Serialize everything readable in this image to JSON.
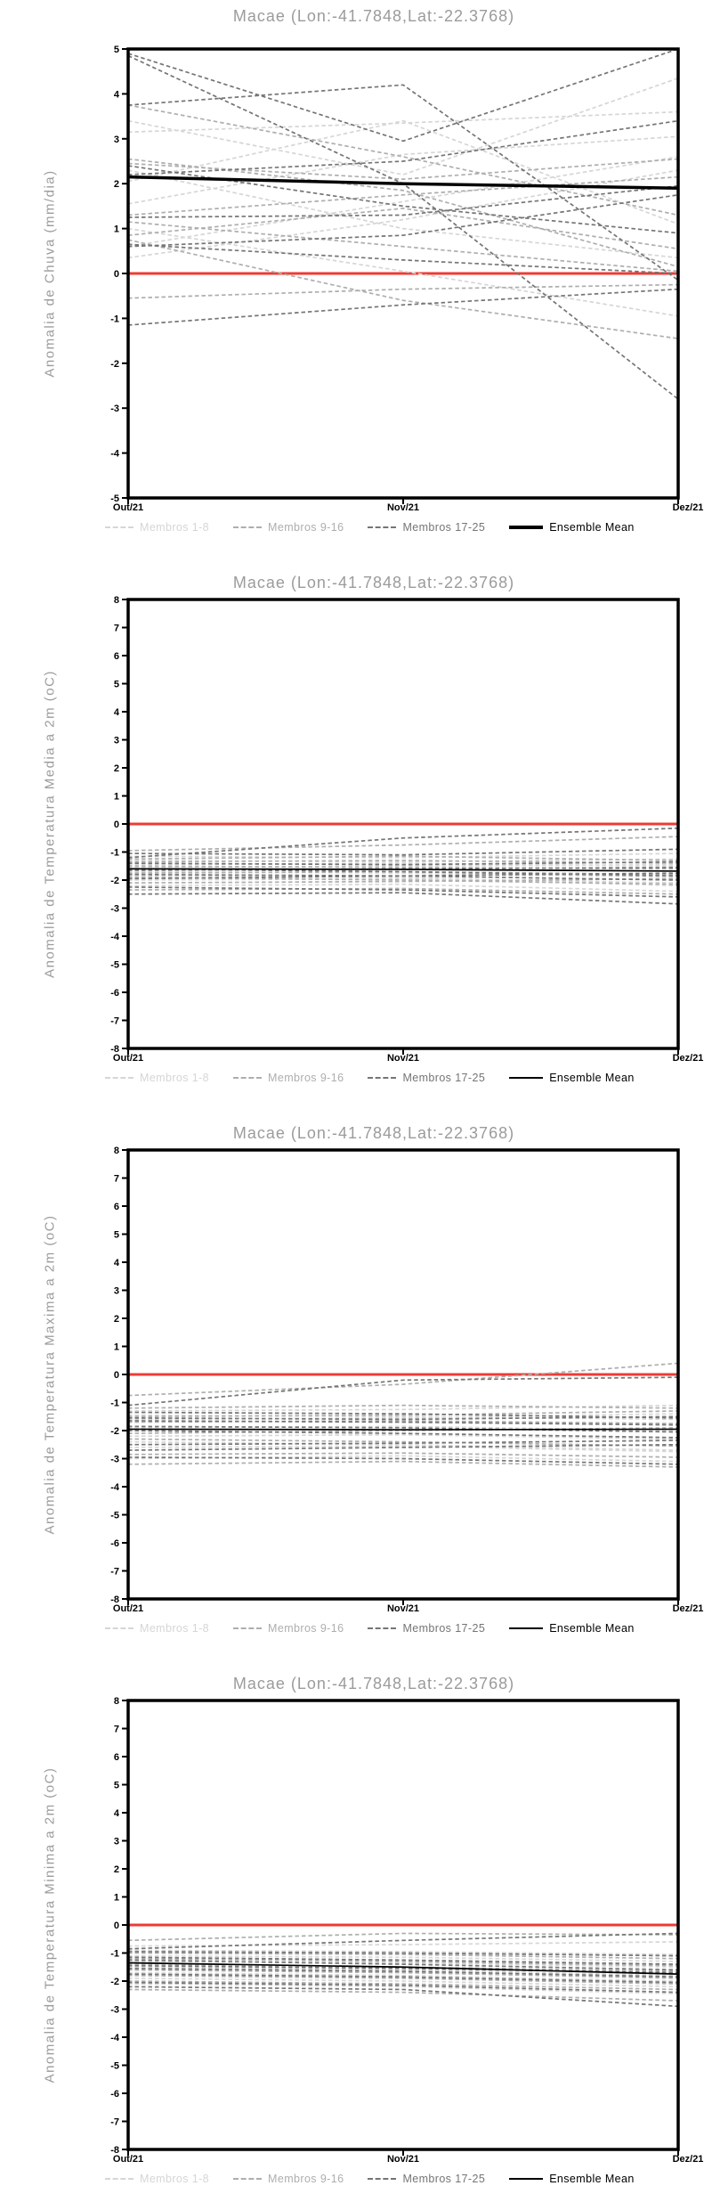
{
  "shared": {
    "x_tick_labels": [
      "Out/21",
      "Nov/21",
      "Dez/21"
    ],
    "legend": [
      {
        "label": "Membros 1-8",
        "color": "#d6d6d6",
        "style": "dashed"
      },
      {
        "label": "Membros 9-16",
        "color": "#aeaeae",
        "style": "dashed"
      },
      {
        "label": "Membros 17-25",
        "color": "#757575",
        "style": "dashed"
      },
      {
        "label": "Ensemble Mean",
        "color": "#000000",
        "style": "solid"
      }
    ],
    "zero_line_color": "#ee3b35",
    "member_colors": {
      "light": "#d6d6d6",
      "medium": "#aeaeae",
      "dark": "#757575"
    },
    "mean_color": "#000000",
    "frame_color": "#000000",
    "title_color": "#9b9b9b"
  },
  "chart_data": [
    {
      "type": "line",
      "title": "Macae (Lon:-41.7848,Lat:-22.3768)",
      "ylabel": "Anomalia de Chuva (mm/dia)",
      "ylim": [
        -5,
        5
      ],
      "ystep": 1,
      "x": [
        "Out/21",
        "Nov/21",
        "Dez/21"
      ],
      "zero_line": 0,
      "mean": [
        2.15,
        2.0,
        1.9
      ],
      "mean_width": 3.5,
      "legend_mean_width": 4,
      "members": {
        "light": [
          [
            3.4,
            2.2,
            4.35
          ],
          [
            3.15,
            3.35,
            3.6
          ],
          [
            1.55,
            2.65,
            3.05
          ],
          [
            0.35,
            1.2,
            2.3
          ],
          [
            2.3,
            1.0,
            0.35
          ],
          [
            1.0,
            0.05,
            -0.95
          ],
          [
            0.6,
            1.6,
            2.6
          ],
          [
            2.05,
            3.4,
            1.1
          ]
        ],
        "medium": [
          [
            3.75,
            2.6,
            1.3
          ],
          [
            2.55,
            1.85,
            0.15
          ],
          [
            1.3,
            1.75,
            2.15
          ],
          [
            1.15,
            0.6,
            0.05
          ],
          [
            0.85,
            1.45,
            0.55
          ],
          [
            -0.55,
            -0.35,
            -0.25
          ],
          [
            2.45,
            2.1,
            2.55
          ],
          [
            0.75,
            -0.6,
            -1.45
          ]
        ],
        "dark": [
          [
            4.9,
            2.95,
            5.0
          ],
          [
            3.75,
            4.2,
            -0.15
          ],
          [
            4.85,
            2.0,
            -2.8
          ],
          [
            2.2,
            2.5,
            3.4
          ],
          [
            1.25,
            1.3,
            1.95
          ],
          [
            0.65,
            0.3,
            0.0
          ],
          [
            -1.15,
            -0.7,
            -0.35
          ],
          [
            2.4,
            1.5,
            0.9
          ],
          [
            0.6,
            0.85,
            1.75
          ]
        ]
      }
    },
    {
      "type": "line",
      "title": "Macae (Lon:-41.7848,Lat:-22.3768)",
      "ylabel": "Anomalia de Temperatura Media a 2m (oC)",
      "ylim": [
        -8,
        8
      ],
      "ystep": 1,
      "x": [
        "Out/21",
        "Nov/21",
        "Dez/21"
      ],
      "zero_line": 0,
      "mean": [
        -1.6,
        -1.62,
        -1.68
      ],
      "mean_width": 1.7,
      "legend_mean_width": 2,
      "members": {
        "light": [
          [
            -1.45,
            -1.4,
            -1.5
          ],
          [
            -1.7,
            -1.75,
            -1.9
          ],
          [
            -2.0,
            -1.95,
            -2.1
          ],
          [
            -1.3,
            -1.35,
            -1.25
          ],
          [
            -2.2,
            -2.15,
            -2.4
          ],
          [
            -1.55,
            -1.5,
            -1.45
          ],
          [
            -1.85,
            -1.9,
            -2.2
          ],
          [
            -1.15,
            -1.2,
            -1.05
          ]
        ],
        "medium": [
          [
            -0.95,
            -0.75,
            -0.45
          ],
          [
            -1.5,
            -1.55,
            -1.6
          ],
          [
            -1.75,
            -1.7,
            -1.8
          ],
          [
            -2.1,
            -2.05,
            -1.95
          ],
          [
            -1.35,
            -1.3,
            -1.4
          ],
          [
            -1.9,
            -2.0,
            -2.15
          ],
          [
            -2.35,
            -2.3,
            -2.5
          ],
          [
            -1.25,
            -1.15,
            -1.3
          ]
        ],
        "dark": [
          [
            -1.2,
            -0.5,
            -0.15
          ],
          [
            -1.4,
            -1.45,
            -1.35
          ],
          [
            -1.65,
            -1.6,
            -1.55
          ],
          [
            -1.95,
            -1.85,
            -1.75
          ],
          [
            -2.5,
            -2.45,
            -2.85
          ],
          [
            -1.05,
            -1.1,
            -0.9
          ],
          [
            -1.8,
            -1.85,
            -2.0
          ],
          [
            -2.25,
            -2.35,
            -2.6
          ],
          [
            -1.6,
            -1.7,
            -1.85
          ]
        ]
      }
    },
    {
      "type": "line",
      "title": "Macae (Lon:-41.7848,Lat:-22.3768)",
      "ylabel": "Anomalia de Temperatura Maxima a 2m (oC)",
      "ylim": [
        -8,
        8
      ],
      "ystep": 1,
      "x": [
        "Out/21",
        "Nov/21",
        "Dez/21"
      ],
      "zero_line": 0,
      "mean": [
        -1.95,
        -1.97,
        -1.95
      ],
      "mean_width": 1.7,
      "legend_mean_width": 2,
      "members": {
        "light": [
          [
            -1.3,
            -1.25,
            -1.1
          ],
          [
            -2.2,
            -2.15,
            -2.3
          ],
          [
            -2.6,
            -2.55,
            -2.75
          ],
          [
            -1.6,
            -1.55,
            -1.4
          ],
          [
            -3.0,
            -2.9,
            -3.1
          ],
          [
            -1.9,
            -1.85,
            -2.0
          ],
          [
            -2.4,
            -2.5,
            -2.7
          ],
          [
            -1.45,
            -1.5,
            -1.6
          ]
        ],
        "medium": [
          [
            -0.75,
            -0.35,
            0.4
          ],
          [
            -1.7,
            -1.65,
            -1.75
          ],
          [
            -2.1,
            -2.0,
            -1.9
          ],
          [
            -2.85,
            -2.8,
            -2.95
          ],
          [
            -1.5,
            -1.45,
            -1.3
          ],
          [
            -2.3,
            -2.4,
            -2.55
          ],
          [
            -3.2,
            -3.1,
            -3.3
          ],
          [
            -1.2,
            -1.1,
            -1.2
          ]
        ],
        "dark": [
          [
            -1.1,
            -0.2,
            -0.1
          ],
          [
            -1.55,
            -1.6,
            -1.5
          ],
          [
            -1.85,
            -1.9,
            -2.05
          ],
          [
            -2.5,
            -2.45,
            -2.35
          ],
          [
            -2.95,
            -3.0,
            -3.2
          ],
          [
            -1.35,
            -1.4,
            -1.55
          ],
          [
            -2.0,
            -2.1,
            -2.25
          ],
          [
            -2.7,
            -2.6,
            -2.5
          ],
          [
            -1.65,
            -1.7,
            -1.8
          ]
        ]
      }
    },
    {
      "type": "line",
      "title": "Macae (Lon:-41.7848,Lat:-22.3768)",
      "ylabel": "Anomalia de Temperatura Minima a 2m (oC)",
      "ylim": [
        -8,
        8
      ],
      "ystep": 1,
      "x": [
        "Out/21",
        "Nov/21",
        "Dez/21"
      ],
      "zero_line": 0,
      "mean": [
        -1.35,
        -1.5,
        -1.75
      ],
      "mean_width": 1.7,
      "legend_mean_width": 2,
      "members": {
        "light": [
          [
            -1.1,
            -1.15,
            -1.3
          ],
          [
            -1.5,
            -1.6,
            -1.8
          ],
          [
            -1.9,
            -2.0,
            -2.2
          ],
          [
            -0.9,
            -0.95,
            -1.05
          ],
          [
            -2.1,
            -2.2,
            -2.45
          ],
          [
            -1.3,
            -1.35,
            -1.5
          ],
          [
            -1.7,
            -1.8,
            -2.0
          ],
          [
            -0.75,
            -0.7,
            -0.6
          ]
        ],
        "medium": [
          [
            -0.55,
            -0.3,
            -0.35
          ],
          [
            -1.2,
            -1.3,
            -1.45
          ],
          [
            -1.6,
            -1.7,
            -1.9
          ],
          [
            -2.0,
            -2.1,
            -2.3
          ],
          [
            -1.0,
            -1.05,
            -1.2
          ],
          [
            -1.8,
            -1.9,
            -2.1
          ],
          [
            -2.3,
            -2.4,
            -2.7
          ],
          [
            -1.4,
            -1.5,
            -1.65
          ]
        ],
        "dark": [
          [
            -0.85,
            -0.55,
            -0.3
          ],
          [
            -1.15,
            -1.25,
            -1.4
          ],
          [
            -1.45,
            -1.55,
            -1.7
          ],
          [
            -1.75,
            -1.85,
            -2.05
          ],
          [
            -2.2,
            -2.3,
            -2.9
          ],
          [
            -0.95,
            -1.0,
            -1.1
          ],
          [
            -1.55,
            -1.65,
            -1.85
          ],
          [
            -2.05,
            -2.15,
            -2.4
          ],
          [
            -1.25,
            -1.4,
            -1.6
          ]
        ]
      }
    }
  ]
}
